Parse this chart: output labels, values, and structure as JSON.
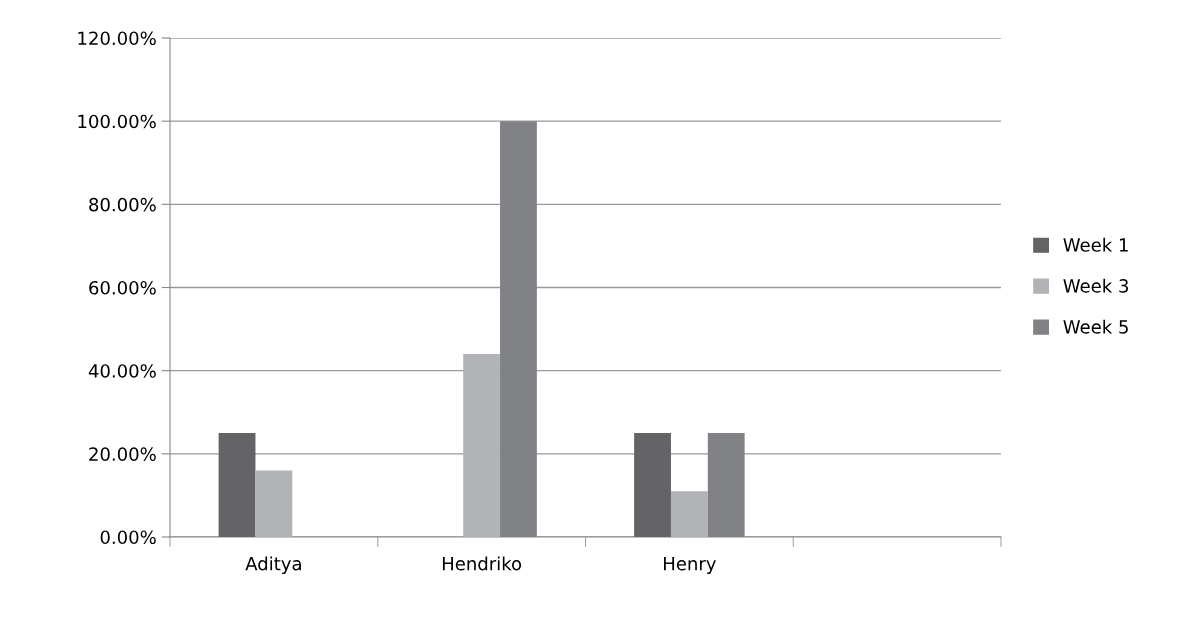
{
  "chart_data": {
    "type": "bar",
    "categories": [
      "Aditya",
      "Hendriko",
      "Henry",
      null
    ],
    "series": [
      {
        "name": "Week 1",
        "color": "#646466",
        "values": [
          25,
          0,
          25,
          null
        ]
      },
      {
        "name": "Week 3",
        "color": "#b2b3b6",
        "values": [
          16,
          44,
          11,
          null
        ]
      },
      {
        "name": "Week 5",
        "color": "#818286",
        "values": [
          0,
          100,
          25,
          null
        ]
      }
    ],
    "ylim": [
      0,
      120
    ],
    "yticks": [
      {
        "value": 0,
        "label": "0.00%"
      },
      {
        "value": 20,
        "label": "20.00%"
      },
      {
        "value": 40,
        "label": "40.00%"
      },
      {
        "value": 60,
        "label": "60.00%"
      },
      {
        "value": 80,
        "label": "80.00%"
      },
      {
        "value": 100,
        "label": "100.00%"
      },
      {
        "value": 120,
        "label": "120.00%"
      }
    ],
    "grid": "y",
    "legend": "right"
  }
}
